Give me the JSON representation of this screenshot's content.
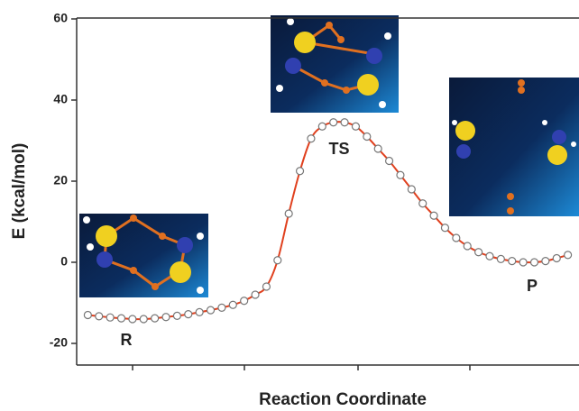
{
  "chart_data": {
    "type": "line",
    "y_label": "E (kcal/mol)",
    "x_label": "Reaction Coordinate",
    "annotations": [
      "R",
      "TS",
      "P"
    ],
    "x": [
      0,
      1,
      2,
      3,
      4,
      5,
      6,
      7,
      8,
      9,
      10,
      11,
      12,
      13,
      14,
      15,
      16,
      17,
      18,
      19,
      20,
      21,
      22,
      23,
      24,
      25,
      26,
      27,
      28,
      29,
      30,
      31,
      32,
      33,
      34,
      35,
      36,
      37,
      38,
      39,
      40,
      41,
      42,
      43
    ],
    "series": [
      {
        "color": "#e0401e",
        "values": [
          -13,
          -13.3,
          -13.6,
          -13.8,
          -14,
          -14,
          -13.8,
          -13.5,
          -13.2,
          -12.8,
          -12.3,
          -11.8,
          -11.2,
          -10.5,
          -9.5,
          -8,
          -6,
          0.5,
          12,
          22.5,
          30.5,
          33.5,
          34.5,
          34.5,
          33.5,
          31,
          28,
          25,
          21.5,
          18,
          14.5,
          11.5,
          8.5,
          6,
          4,
          2.5,
          1.5,
          0.8,
          0.3,
          0,
          0,
          0.3,
          1,
          1.8
        ]
      }
    ],
    "xlim": [
      -1,
      44
    ],
    "ylim": [
      -25,
      60
    ],
    "yticks": [
      -20,
      0,
      20,
      40,
      60
    ]
  }
}
